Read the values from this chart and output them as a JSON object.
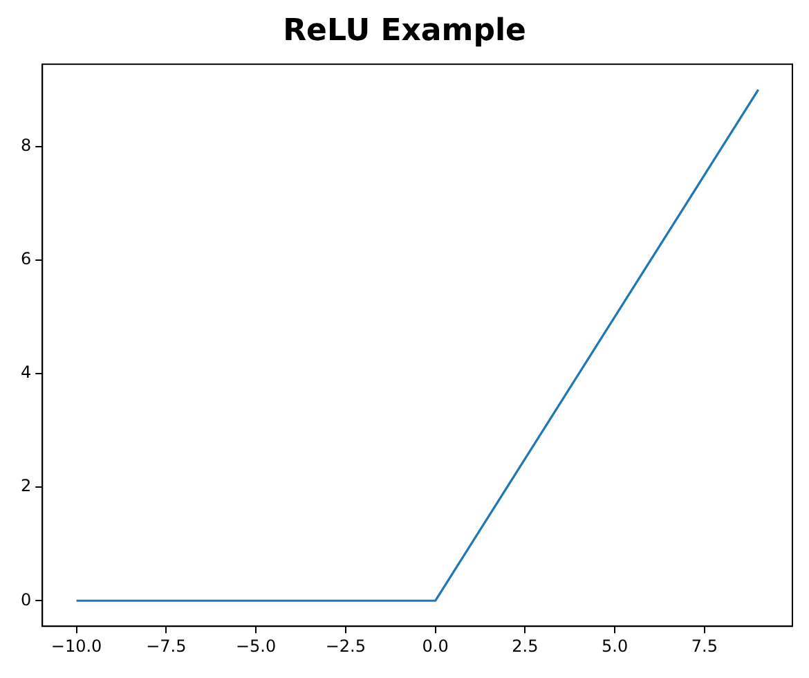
{
  "chart_data": {
    "type": "line",
    "title": "ReLU Example",
    "x": [
      -10,
      0,
      9
    ],
    "series": [
      {
        "color": "#1f77b4",
        "values": [
          0,
          0,
          9
        ]
      }
    ],
    "xlim": [
      -10.95,
      9.95
    ],
    "ylim": [
      -0.45,
      9.45
    ],
    "xticks": [
      {
        "value": -10,
        "label": "−10.0"
      },
      {
        "value": -7.5,
        "label": "−7.5"
      },
      {
        "value": -5,
        "label": "−5.0"
      },
      {
        "value": -2.5,
        "label": "−2.5"
      },
      {
        "value": 0,
        "label": "0.0"
      },
      {
        "value": 2.5,
        "label": "2.5"
      },
      {
        "value": 5,
        "label": "5.0"
      },
      {
        "value": 7.5,
        "label": "7.5"
      }
    ],
    "yticks": [
      0,
      2,
      4,
      6,
      8
    ],
    "grid": false,
    "legend": false,
    "marker": "none",
    "line_style": "solid"
  }
}
